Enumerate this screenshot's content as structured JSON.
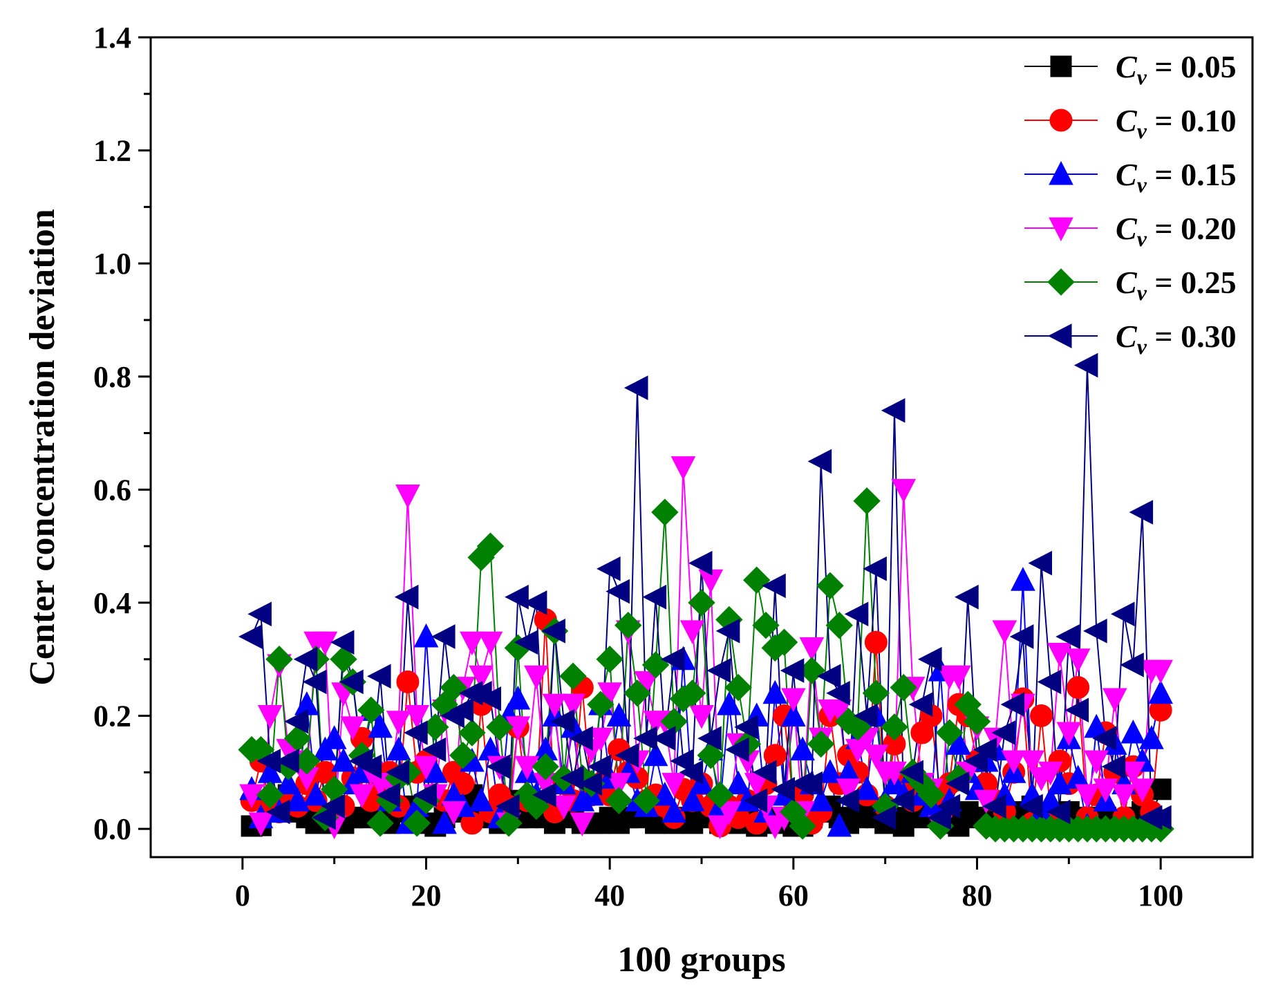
{
  "chart_data": {
    "type": "line",
    "title": "",
    "xlabel": "100 groups",
    "ylabel": "Center concentration deviation",
    "xlim": [
      -10,
      110
    ],
    "ylim": [
      -0.05,
      1.4
    ],
    "xticks": [
      "0",
      "20",
      "40",
      "60",
      "80",
      "100"
    ],
    "yticks": [
      "0.0",
      "0.2",
      "0.4",
      "0.6",
      "0.8",
      "1.0",
      "1.2",
      "1.4"
    ],
    "legend_position": "top-right",
    "legend_prefix": "C",
    "legend_subscript": "v",
    "series": [
      {
        "name": "Cv = 0.05",
        "legend_value": "= 0.05",
        "color": "#000000",
        "marker": "square",
        "values": [
          0.005,
          0.006,
          0.03,
          0.04,
          0.06,
          0.03,
          0.02,
          0.01,
          0.02,
          0.01,
          0.01,
          0.02,
          0.02,
          0.03,
          0.02,
          0.01,
          0.04,
          0.03,
          0.04,
          0.01,
          0.005,
          0.02,
          0.05,
          0.03,
          0.06,
          0.02,
          0.03,
          0.01,
          0.05,
          0.02,
          0.02,
          0.03,
          0.02,
          0.01,
          0.03,
          0.02,
          0.01,
          0.01,
          0.01,
          0.02,
          0.01,
          0.02,
          0.02,
          0.03,
          0.01,
          0.02,
          0.01,
          0.02,
          0.01,
          0.02,
          0.03,
          0.01,
          0.02,
          0.01,
          0.02,
          0.005,
          0.01,
          0.02,
          0.01,
          0.005,
          0.005,
          0.02,
          0.03,
          0.04,
          0.02,
          0.01,
          0.02,
          0.03,
          0.02,
          0.01,
          0.02,
          0.005,
          0.03,
          0.02,
          0.04,
          0.02,
          0.01,
          0.005,
          0.03,
          0.02,
          0.02,
          0.01,
          0.02,
          0.03,
          0.01,
          0.04,
          0.02,
          0.01,
          0.02,
          0.03,
          0.01,
          0.02,
          0.01,
          0.02,
          0.01,
          0.01,
          0.02,
          0.03,
          0.02,
          0.07
        ]
      },
      {
        "name": "Cv = 0.10",
        "legend_value": "= 0.10",
        "color": "#ff0000",
        "marker": "circle",
        "values": [
          0.05,
          0.12,
          0.04,
          0.03,
          0.06,
          0.04,
          0.08,
          0.05,
          0.1,
          0.03,
          0.04,
          0.09,
          0.16,
          0.05,
          0.08,
          0.1,
          0.04,
          0.26,
          0.1,
          0.12,
          0.06,
          0.05,
          0.1,
          0.08,
          0.01,
          0.22,
          0.03,
          0.06,
          0.04,
          0.18,
          0.05,
          0.05,
          0.37,
          0.03,
          0.08,
          0.05,
          0.25,
          0.06,
          0.08,
          0.06,
          0.14,
          0.1,
          0.09,
          0.05,
          0.06,
          0.04,
          0.02,
          0.07,
          0.05,
          0.08,
          0.04,
          0.005,
          0.04,
          0.02,
          0.05,
          0.01,
          0.08,
          0.13,
          0.2,
          0.05,
          0.06,
          0.01,
          0.03,
          0.2,
          0.08,
          0.13,
          0.1,
          0.06,
          0.33,
          0.04,
          0.15,
          0.08,
          0.05,
          0.17,
          0.2,
          0.06,
          0.08,
          0.22,
          0.2,
          0.12,
          0.08,
          0.05,
          0.03,
          0.1,
          0.23,
          0.01,
          0.2,
          0.03,
          0.12,
          0.08,
          0.25,
          0.02,
          0.06,
          0.17,
          0.1,
          0.02,
          0.11,
          0.06,
          0.03,
          0.21
        ]
      },
      {
        "name": "Cv = 0.15",
        "legend_value": "= 0.15",
        "color": "#0000ff",
        "marker": "triangle-up",
        "values": [
          0.07,
          0.02,
          0.1,
          0.03,
          0.08,
          0.05,
          0.22,
          0.06,
          0.14,
          0.16,
          0.12,
          0.08,
          0.1,
          0.21,
          0.18,
          0.05,
          0.14,
          0.01,
          0.04,
          0.34,
          0.1,
          0.01,
          0.06,
          0.04,
          0.12,
          0.05,
          0.14,
          0.02,
          0.2,
          0.23,
          0.1,
          0.06,
          0.14,
          0.2,
          0.08,
          0.18,
          0.05,
          0.06,
          0.22,
          0.09,
          0.2,
          0.1,
          0.05,
          0.04,
          0.13,
          0.06,
          0.03,
          0.3,
          0.05,
          0.08,
          0.14,
          0.04,
          0.22,
          0.08,
          0.05,
          0.2,
          0.03,
          0.24,
          0.06,
          0.2,
          0.14,
          0.08,
          0.05,
          0.1,
          0.005,
          0.1,
          0.16,
          0.07,
          0.2,
          0.05,
          0.08,
          0.06,
          0.1,
          0.06,
          0.04,
          0.28,
          0.05,
          0.15,
          0.1,
          0.07,
          0.12,
          0.14,
          0.06,
          0.1,
          0.44,
          0.06,
          0.03,
          0.05,
          0.08,
          0.16,
          0.09,
          0.005,
          0.18,
          0.05,
          0.15,
          0.08,
          0.17,
          0.12,
          0.16,
          0.24
        ]
      },
      {
        "name": "Cv = 0.20",
        "legend_value": "= 0.20",
        "color": "#ff00ff",
        "marker": "triangle-down",
        "values": [
          0.06,
          0.01,
          0.2,
          0.29,
          0.14,
          0.12,
          0.09,
          0.33,
          0.33,
          0.005,
          0.24,
          0.18,
          0.06,
          0.1,
          0.08,
          0.08,
          0.19,
          0.59,
          0.2,
          0.11,
          0.06,
          0.21,
          0.03,
          0.25,
          0.33,
          0.27,
          0.33,
          0.11,
          0.01,
          0.18,
          0.11,
          0.27,
          0.08,
          0.22,
          0.04,
          0.22,
          0.01,
          0.14,
          0.16,
          0.24,
          0.08,
          0.35,
          0.12,
          0.26,
          0.19,
          0.19,
          0.08,
          0.64,
          0.35,
          0.2,
          0.44,
          0.005,
          0.03,
          0.15,
          0.12,
          0.08,
          0.04,
          0.005,
          0.02,
          0.23,
          0.03,
          0.32,
          0.16,
          0.21,
          0.21,
          0.07,
          0.14,
          0.16,
          0.13,
          0.1,
          0.1,
          0.6,
          0.25,
          0.08,
          0.07,
          0.005,
          0.27,
          0.27,
          0.1,
          0.18,
          0.05,
          0.16,
          0.35,
          0.12,
          0.22,
          0.12,
          0.09,
          0.1,
          0.31,
          0.17,
          0.3,
          0.06,
          0.12,
          0.07,
          0.23,
          0.06,
          0.1,
          0.07,
          0.28,
          0.28
        ]
      },
      {
        "name": "Cv = 0.25",
        "legend_value": "= 0.25",
        "color": "#008000",
        "marker": "diamond",
        "values": [
          0.14,
          0.14,
          0.06,
          0.3,
          0.11,
          0.16,
          0.12,
          0.3,
          0.02,
          0.07,
          0.3,
          0.26,
          0.13,
          0.21,
          0.01,
          0.05,
          0.09,
          0.1,
          0.01,
          0.05,
          0.18,
          0.22,
          0.25,
          0.13,
          0.17,
          0.48,
          0.5,
          0.18,
          0.01,
          0.32,
          0.06,
          0.04,
          0.11,
          0.35,
          0.09,
          0.27,
          0.09,
          0.08,
          0.22,
          0.3,
          0.05,
          0.36,
          0.24,
          0.05,
          0.29,
          0.56,
          0.19,
          0.23,
          0.24,
          0.4,
          0.13,
          0.06,
          0.37,
          0.25,
          0.15,
          0.44,
          0.36,
          0.32,
          0.33,
          0.03,
          0.005,
          0.28,
          0.15,
          0.43,
          0.36,
          0.19,
          0.18,
          0.58,
          0.24,
          0.04,
          0.18,
          0.25,
          0.1,
          0.08,
          0.06,
          0.005,
          0.17,
          0.09,
          0.22,
          0.19,
          0.005,
          0.0,
          0.0,
          0.0,
          0.0,
          0.0,
          0.0,
          0.0,
          0.0,
          0.0,
          0.0,
          0.0,
          0.0,
          0.0,
          0.0,
          0.0,
          0.0,
          0.0,
          0.0,
          0.0
        ]
      },
      {
        "name": "Cv = 0.30",
        "legend_value": "= 0.30",
        "color": "#000080",
        "marker": "triangle-left",
        "values": [
          0.34,
          0.38,
          0.12,
          0.03,
          0.12,
          0.19,
          0.3,
          0.26,
          0.02,
          0.04,
          0.33,
          0.26,
          0.12,
          0.11,
          0.27,
          0.06,
          0.1,
          0.41,
          0.17,
          0.06,
          0.14,
          0.34,
          0.2,
          0.21,
          0.24,
          0.24,
          0.23,
          0.11,
          0.04,
          0.41,
          0.33,
          0.4,
          0.06,
          0.35,
          0.19,
          0.09,
          0.16,
          0.08,
          0.11,
          0.46,
          0.42,
          0.13,
          0.78,
          0.16,
          0.41,
          0.16,
          0.3,
          0.12,
          0.1,
          0.47,
          0.16,
          0.28,
          0.35,
          0.14,
          0.18,
          0.05,
          0.1,
          0.43,
          0.07,
          0.28,
          0.08,
          0.08,
          0.65,
          0.27,
          0.24,
          0.05,
          0.38,
          0.2,
          0.46,
          0.02,
          0.74,
          0.05,
          0.1,
          0.22,
          0.3,
          0.02,
          0.04,
          0.08,
          0.41,
          0.12,
          0.14,
          0.04,
          0.17,
          0.22,
          0.34,
          0.04,
          0.47,
          0.26,
          0.03,
          0.34,
          0.21,
          0.82,
          0.35,
          0.16,
          0.11,
          0.38,
          0.29,
          0.56,
          0.02,
          0.02
        ]
      }
    ]
  }
}
